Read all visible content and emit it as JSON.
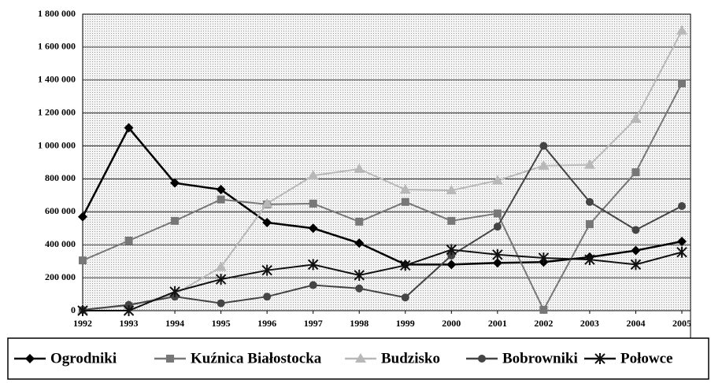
{
  "chart_data": {
    "type": "line",
    "x": [
      1992,
      1993,
      1994,
      1995,
      1996,
      1997,
      1998,
      1999,
      2000,
      2001,
      2002,
      2003,
      2004,
      2005
    ],
    "xlim": [
      1992,
      2005
    ],
    "xticks": [
      1992,
      1993,
      1994,
      1995,
      1996,
      1997,
      1998,
      1999,
      2000,
      2001,
      2002,
      2003,
      2004,
      2005
    ],
    "ylim": [
      0,
      1800000
    ],
    "yticks": [
      0,
      {
        "value": 200000,
        "label": "200 000"
      },
      {
        "value": 400000,
        "label": "400 000"
      },
      {
        "value": 600000,
        "label": "600 000"
      },
      {
        "value": 800000,
        "label": "800 000"
      },
      {
        "value": 1000000,
        "label": "1 000 000"
      },
      {
        "value": 1200000,
        "label": "1 200 000"
      },
      {
        "value": 1400000,
        "label": "1 400 000"
      },
      {
        "value": 1600000,
        "label": "1 600 000"
      },
      {
        "value": 1800000,
        "label": "1 800 000"
      }
    ],
    "grid": true,
    "legend": "bottom",
    "series": [
      {
        "name": "Ogrodniki",
        "color": "#000000",
        "marker": "diamond",
        "values": [
          570000,
          1110000,
          775000,
          735000,
          535000,
          500000,
          410000,
          280000,
          280000,
          290000,
          295000,
          325000,
          365000,
          420000
        ]
      },
      {
        "name": "Kuźnica Białostocka",
        "color": "#777777",
        "marker": "square",
        "values": [
          305000,
          425000,
          545000,
          675000,
          645000,
          650000,
          540000,
          660000,
          545000,
          590000,
          5000,
          525000,
          840000,
          1380000
        ]
      },
      {
        "name": "Budzisko",
        "color": "#b8b8b8",
        "marker": "triangle",
        "values": [
          5000,
          30000,
          100000,
          265000,
          650000,
          820000,
          860000,
          735000,
          730000,
          790000,
          880000,
          885000,
          1165000,
          1700000
        ]
      },
      {
        "name": "Bobrowniki",
        "color": "#444444",
        "marker": "circle",
        "values": [
          5000,
          35000,
          85000,
          45000,
          85000,
          155000,
          135000,
          80000,
          335000,
          510000,
          1000000,
          660000,
          490000,
          635000
        ]
      },
      {
        "name": "Połowce",
        "color": "#111111",
        "marker": "star",
        "values": [
          0,
          0,
          115000,
          190000,
          245000,
          280000,
          215000,
          275000,
          370000,
          340000,
          320000,
          310000,
          280000,
          355000
        ]
      }
    ]
  }
}
